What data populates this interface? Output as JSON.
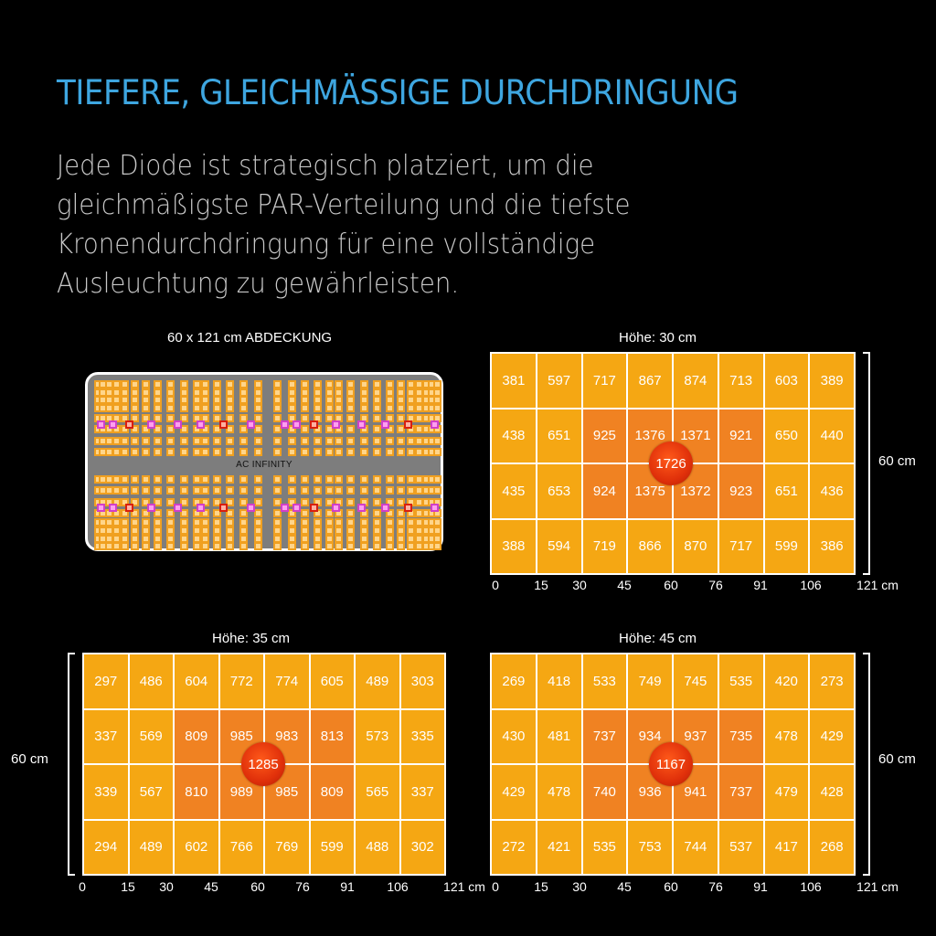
{
  "header": {
    "title": "TIEFERE, GLEICHMÄSSIGE DURCHDRINGUNG",
    "description_lines": [
      "Jede Diode ist strategisch platziert, um die",
      "gleichmäßigste PAR-Verteilung und die tiefste",
      "Kronendurchdringung für eine vollständige",
      "Ausleuchtung zu gewährleisten."
    ]
  },
  "colors": {
    "title": "#3ea6e0",
    "cell": "#f5a713",
    "cell_hot": "#f08222",
    "peak": "#e0300a",
    "led": "#f0a020",
    "led_uv": "#d13fc8",
    "led_ir": "#d81f0f",
    "panel": "#7d7d7d"
  },
  "light_panel": {
    "caption": "60 x 121 cm ABDECKUNG",
    "brand": "AC INFINITY"
  },
  "x_ticks": [
    "0",
    "15",
    "30",
    "45",
    "60",
    "76",
    "91",
    "106",
    "121 cm"
  ],
  "height_label": "60 cm",
  "maps": [
    {
      "title": "Höhe: 30 cm",
      "peak": "1726",
      "rows": [
        [
          "381",
          "597",
          "717",
          "867",
          "874",
          "713",
          "603",
          "389"
        ],
        [
          "438",
          "651",
          "925",
          "1376",
          "1371",
          "921",
          "650",
          "440"
        ],
        [
          "435",
          "653",
          "924",
          "1375",
          "1372",
          "923",
          "651",
          "436"
        ],
        [
          "388",
          "594",
          "719",
          "866",
          "870",
          "717",
          "599",
          "386"
        ]
      ]
    },
    {
      "title": "Höhe: 35 cm",
      "peak": "1285",
      "rows": [
        [
          "297",
          "486",
          "604",
          "772",
          "774",
          "605",
          "489",
          "303"
        ],
        [
          "337",
          "569",
          "809",
          "985",
          "983",
          "813",
          "573",
          "335"
        ],
        [
          "339",
          "567",
          "810",
          "989",
          "985",
          "809",
          "565",
          "337"
        ],
        [
          "294",
          "489",
          "602",
          "766",
          "769",
          "599",
          "488",
          "302"
        ]
      ]
    },
    {
      "title": "Höhe: 45 cm",
      "peak": "1167",
      "rows": [
        [
          "269",
          "418",
          "533",
          "749",
          "745",
          "535",
          "420",
          "273"
        ],
        [
          "430",
          "481",
          "737",
          "934",
          "937",
          "735",
          "478",
          "429"
        ],
        [
          "429",
          "478",
          "740",
          "936",
          "941",
          "737",
          "479",
          "428"
        ],
        [
          "272",
          "421",
          "535",
          "753",
          "744",
          "537",
          "417",
          "268"
        ]
      ]
    }
  ],
  "chart_data": [
    {
      "type": "heatmap",
      "title": "Höhe: 30 cm",
      "xlabel": "cm",
      "ylabel": "60 cm",
      "x": [
        0,
        15,
        30,
        45,
        60,
        76,
        91,
        106,
        121
      ],
      "peak_center": 1726,
      "values": [
        [
          381,
          597,
          717,
          867,
          874,
          713,
          603,
          389
        ],
        [
          438,
          651,
          925,
          1376,
          1371,
          921,
          650,
          440
        ],
        [
          435,
          653,
          924,
          1375,
          1372,
          923,
          651,
          436
        ],
        [
          388,
          594,
          719,
          866,
          870,
          717,
          599,
          386
        ]
      ]
    },
    {
      "type": "heatmap",
      "title": "Höhe: 35 cm",
      "xlabel": "cm",
      "ylabel": "60 cm",
      "x": [
        0,
        15,
        30,
        45,
        60,
        76,
        91,
        106,
        121
      ],
      "peak_center": 1285,
      "values": [
        [
          297,
          486,
          604,
          772,
          774,
          605,
          489,
          303
        ],
        [
          337,
          569,
          809,
          985,
          983,
          813,
          573,
          335
        ],
        [
          339,
          567,
          810,
          989,
          985,
          809,
          565,
          337
        ],
        [
          294,
          489,
          602,
          766,
          769,
          599,
          488,
          302
        ]
      ]
    },
    {
      "type": "heatmap",
      "title": "Höhe: 45 cm",
      "xlabel": "cm",
      "ylabel": "60 cm",
      "x": [
        0,
        15,
        30,
        45,
        60,
        76,
        91,
        106,
        121
      ],
      "peak_center": 1167,
      "values": [
        [
          269,
          418,
          533,
          749,
          745,
          535,
          420,
          273
        ],
        [
          430,
          481,
          737,
          934,
          937,
          735,
          478,
          429
        ],
        [
          429,
          478,
          740,
          936,
          941,
          737,
          479,
          428
        ],
        [
          272,
          421,
          535,
          753,
          744,
          537,
          417,
          268
        ]
      ]
    }
  ]
}
